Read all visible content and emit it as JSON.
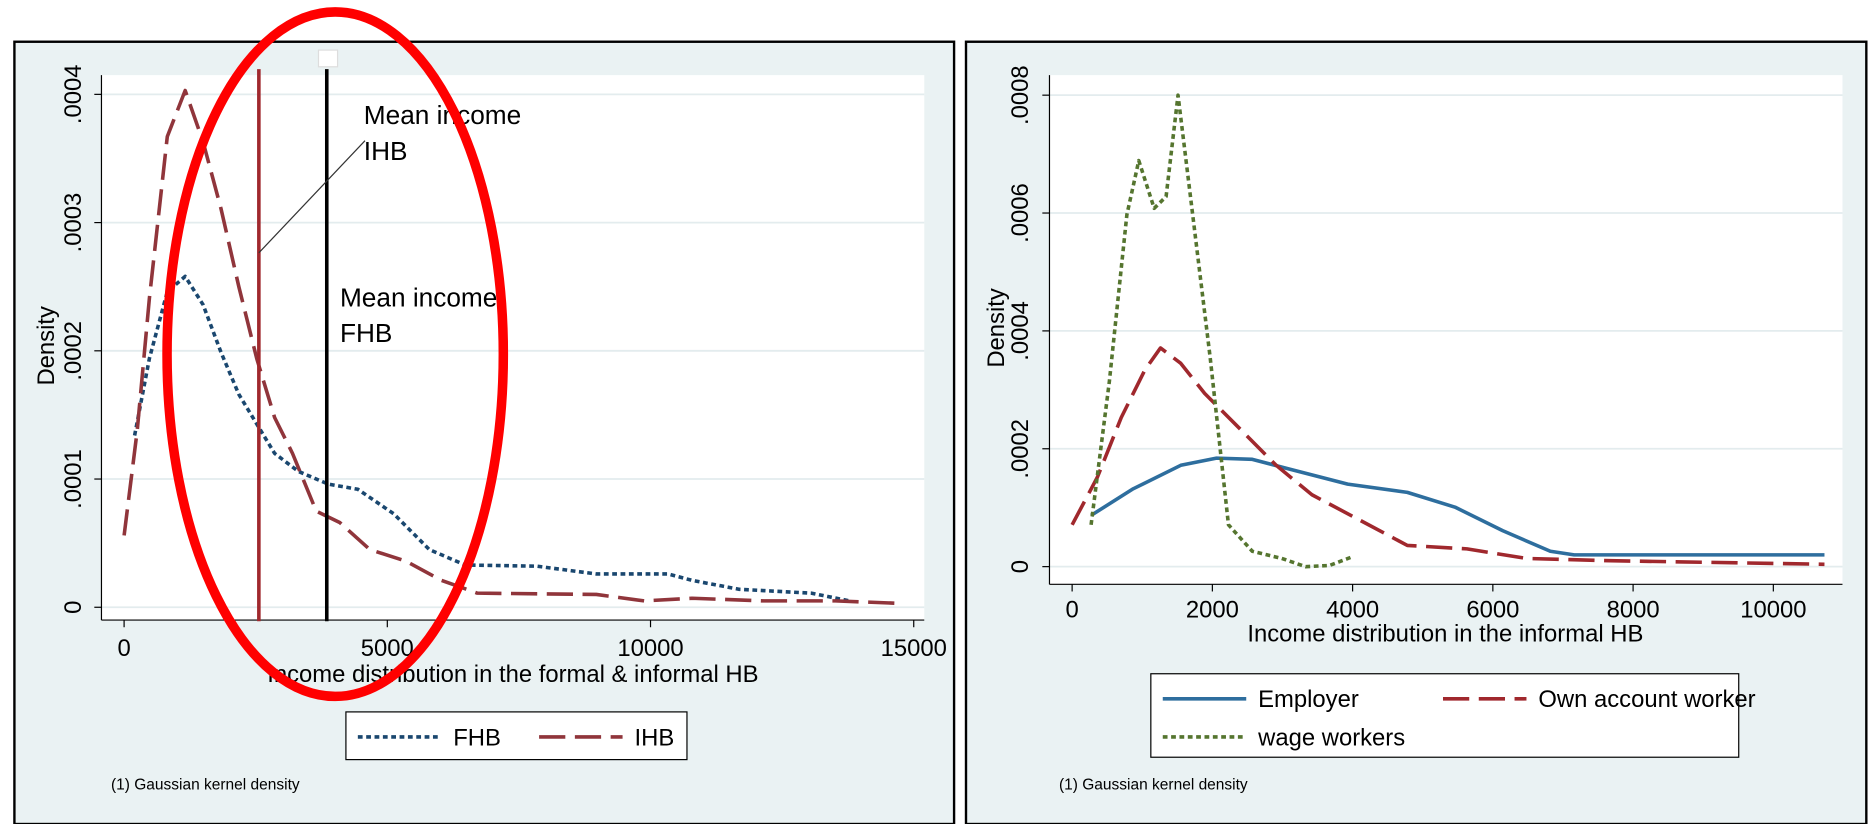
{
  "chart_data": [
    {
      "type": "line",
      "xlabel": "Income distribution in the formal & informal HB",
      "ylabel": "Density",
      "note": "(1) Gaussian kernel density",
      "legend": "bottom",
      "grid": true,
      "xlim": [
        -430,
        15200
      ],
      "ylim": [
        -1e-05,
        0.000415
      ],
      "xticks": [
        0,
        5000,
        10000,
        15000
      ],
      "yticks": [
        0,
        {
          "value": 0.0001,
          "label": ".0001"
        },
        {
          "value": 0.0002,
          "label": ".0002"
        },
        {
          "value": 0.0003,
          "label": ".0003"
        },
        {
          "value": 0.0004,
          "label": ".0004"
        }
      ],
      "series": [
        {
          "name": "FHB",
          "color": "#1a476f",
          "style": "dotted",
          "x": [
            200,
            480,
            820,
            1160,
            1500,
            1840,
            2180,
            2520,
            2860,
            3310,
            3880,
            4440,
            5120,
            5800,
            6480,
            7840,
            8970,
            10330,
            10790,
            11690,
            13050,
            13780
          ],
          "values": [
            0.000134,
            0.000194,
            0.000246,
            0.000258,
            0.000236,
            0.000199,
            0.000166,
            0.000143,
            0.00012,
            0.000106,
            9.6e-05,
            9.2e-05,
            7.3e-05,
            4.5e-05,
            3.3e-05,
            3.2e-05,
            2.6e-05,
            2.6e-05,
            2.1e-05,
            1.4e-05,
            1.1e-05,
            5e-06
          ]
        },
        {
          "name": "IHB",
          "color": "#90353b",
          "style": "dashed",
          "x": [
            0,
            250,
            480,
            820,
            1160,
            1500,
            1840,
            2180,
            2520,
            2860,
            3200,
            3650,
            4100,
            4670,
            5350,
            6030,
            6710,
            8970,
            9880,
            10790,
            12150,
            13510,
            14750
          ],
          "values": [
            5.6e-05,
            0.000138,
            0.000241,
            0.000367,
            0.000403,
            0.000363,
            0.000311,
            0.00025,
            0.000194,
            0.000148,
            0.00012,
            7.5e-05,
            6.6e-05,
            4.5e-05,
            3.6e-05,
            2.1e-05,
            1.1e-05,
            1e-05,
            5e-06,
            7e-06,
            5e-06,
            5e-06,
            3e-06
          ]
        }
      ],
      "reference_lines": [
        {
          "value": 2560,
          "color": "#a0282d"
        },
        {
          "value": 3850,
          "color": "#000000"
        }
      ],
      "annotations": [
        {
          "text": [
            "Mean income",
            "IHB"
          ]
        },
        {
          "text": [
            "Mean income",
            "FHB"
          ]
        }
      ]
    },
    {
      "type": "line",
      "xlabel": "Income distribution in the informal  HB",
      "ylabel": "Density",
      "note": "(1) Gaussian kernel density",
      "legend": "bottom",
      "grid": true,
      "xlim": [
        -323,
        10986
      ],
      "ylim": [
        -3e-05,
        0.000834
      ],
      "xticks": [
        0,
        2000,
        4000,
        6000,
        8000,
        10000
      ],
      "yticks": [
        0,
        {
          "value": 0.0002,
          "label": ".0002"
        },
        {
          "value": 0.0004,
          "label": ".0004"
        },
        {
          "value": 0.0006,
          "label": ".0006"
        },
        {
          "value": 0.0008,
          "label": ".0008"
        }
      ],
      "series": [
        {
          "name": "Employer",
          "color": "#2e6e9e",
          "style": "solid",
          "x": [
            270,
            870,
            1550,
            2060,
            2570,
            3080,
            3930,
            4780,
            5460,
            6140,
            6820,
            7160,
            10730
          ],
          "values": [
            8.7e-05,
            0.000132,
            0.000172,
            0.000184,
            0.000182,
            0.000166,
            0.00014,
            0.000126,
            0.000101,
            6.1e-05,
            2.6e-05,
            2e-05,
            2e-05
          ]
        },
        {
          "name": "Own account worker",
          "color": "#a0282d",
          "style": "dashed",
          "x": [
            0,
            360,
            700,
            1040,
            1260,
            1550,
            1890,
            2400,
            2910,
            3420,
            4100,
            4780,
            5630,
            6480,
            7670,
            10730
          ],
          "values": [
            7.1e-05,
            0.000152,
            0.000253,
            0.000334,
            0.000371,
            0.000345,
            0.000294,
            0.000233,
            0.000172,
            0.000122,
            7.9e-05,
            3.6e-05,
            3e-05,
            1.4e-05,
            1e-05,
            4e-06
          ]
        },
        {
          "name": "wage workers",
          "color": "#55752f",
          "style": "dotted",
          "x": [
            270,
            530,
            780,
            950,
            1170,
            1340,
            1510,
            1720,
            1970,
            2230,
            2570,
            2990,
            3330,
            3670,
            3980
          ],
          "values": [
            7.1e-05,
            0.000314,
            0.000597,
            0.000689,
            0.000608,
            0.000628,
            0.0008,
            0.000597,
            0.000354,
            7.1e-05,
            2.6e-05,
            1.4e-05,
            0,
            2e-06,
            1.6e-05
          ]
        }
      ]
    }
  ]
}
